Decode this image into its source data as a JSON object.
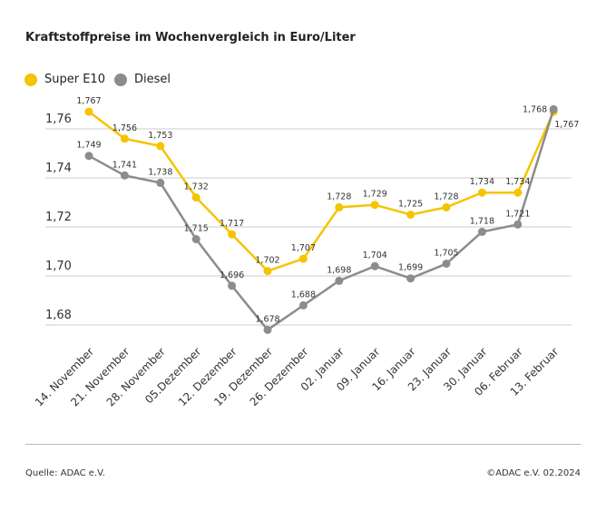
{
  "chart_data": {
    "type": "line",
    "title": "Kraftstoffpreise im Wochenvergleich in Euro/Liter",
    "categories": [
      "14. November",
      "21. November",
      "28. November",
      "05.Dezember",
      "12. Dezember",
      "19. Dezember",
      "26. Dezember",
      "02. Januar",
      "09. Januar",
      "16. Januar",
      "23. Januar",
      "30. Januar",
      "06. Februar",
      "13. Februar"
    ],
    "series": [
      {
        "name": "Super E10",
        "color": "#f5c400",
        "values": [
          1.767,
          1.756,
          1.753,
          1.732,
          1.717,
          1.702,
          1.707,
          1.728,
          1.729,
          1.725,
          1.728,
          1.734,
          1.734,
          1.767
        ]
      },
      {
        "name": "Diesel",
        "color": "#8c8c8c",
        "values": [
          1.749,
          1.741,
          1.738,
          1.715,
          1.696,
          1.678,
          1.688,
          1.698,
          1.704,
          1.699,
          1.705,
          1.718,
          1.721,
          1.768
        ]
      }
    ],
    "yticks": [
      "1,68",
      "1,70",
      "1,72",
      "1,74",
      "1,76"
    ],
    "ytick_values": [
      1.68,
      1.7,
      1.72,
      1.74,
      1.76
    ],
    "grid": true,
    "legend": "top-left"
  },
  "footer": {
    "source": "Quelle: ADAC e.V.",
    "copyright": "©ADAC e.V. 02.2024"
  }
}
